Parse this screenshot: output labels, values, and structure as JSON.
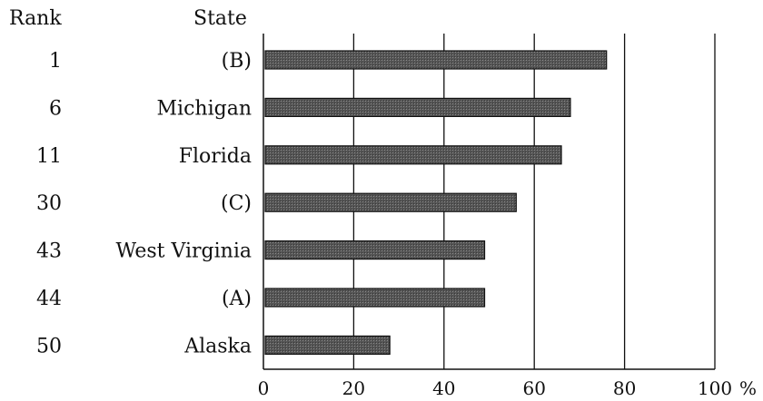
{
  "chart_data": {
    "type": "bar",
    "orientation": "horizontal",
    "header_rank": "Rank",
    "header_state": "State",
    "ranks": [
      "1",
      "6",
      "11",
      "30",
      "43",
      "44",
      "50"
    ],
    "categories": [
      "(B)",
      "Michigan",
      "Florida",
      "(C)",
      "West Virginia",
      "(A)",
      "Alaska"
    ],
    "values": [
      76,
      68,
      66,
      56,
      49,
      49,
      28
    ],
    "xticks": [
      "0",
      "20",
      "40",
      "60",
      "80",
      "100"
    ],
    "xunit": "%",
    "xlim": [
      0,
      100
    ],
    "grid": "vertical lines at each tick",
    "bar_color": "#555555"
  }
}
